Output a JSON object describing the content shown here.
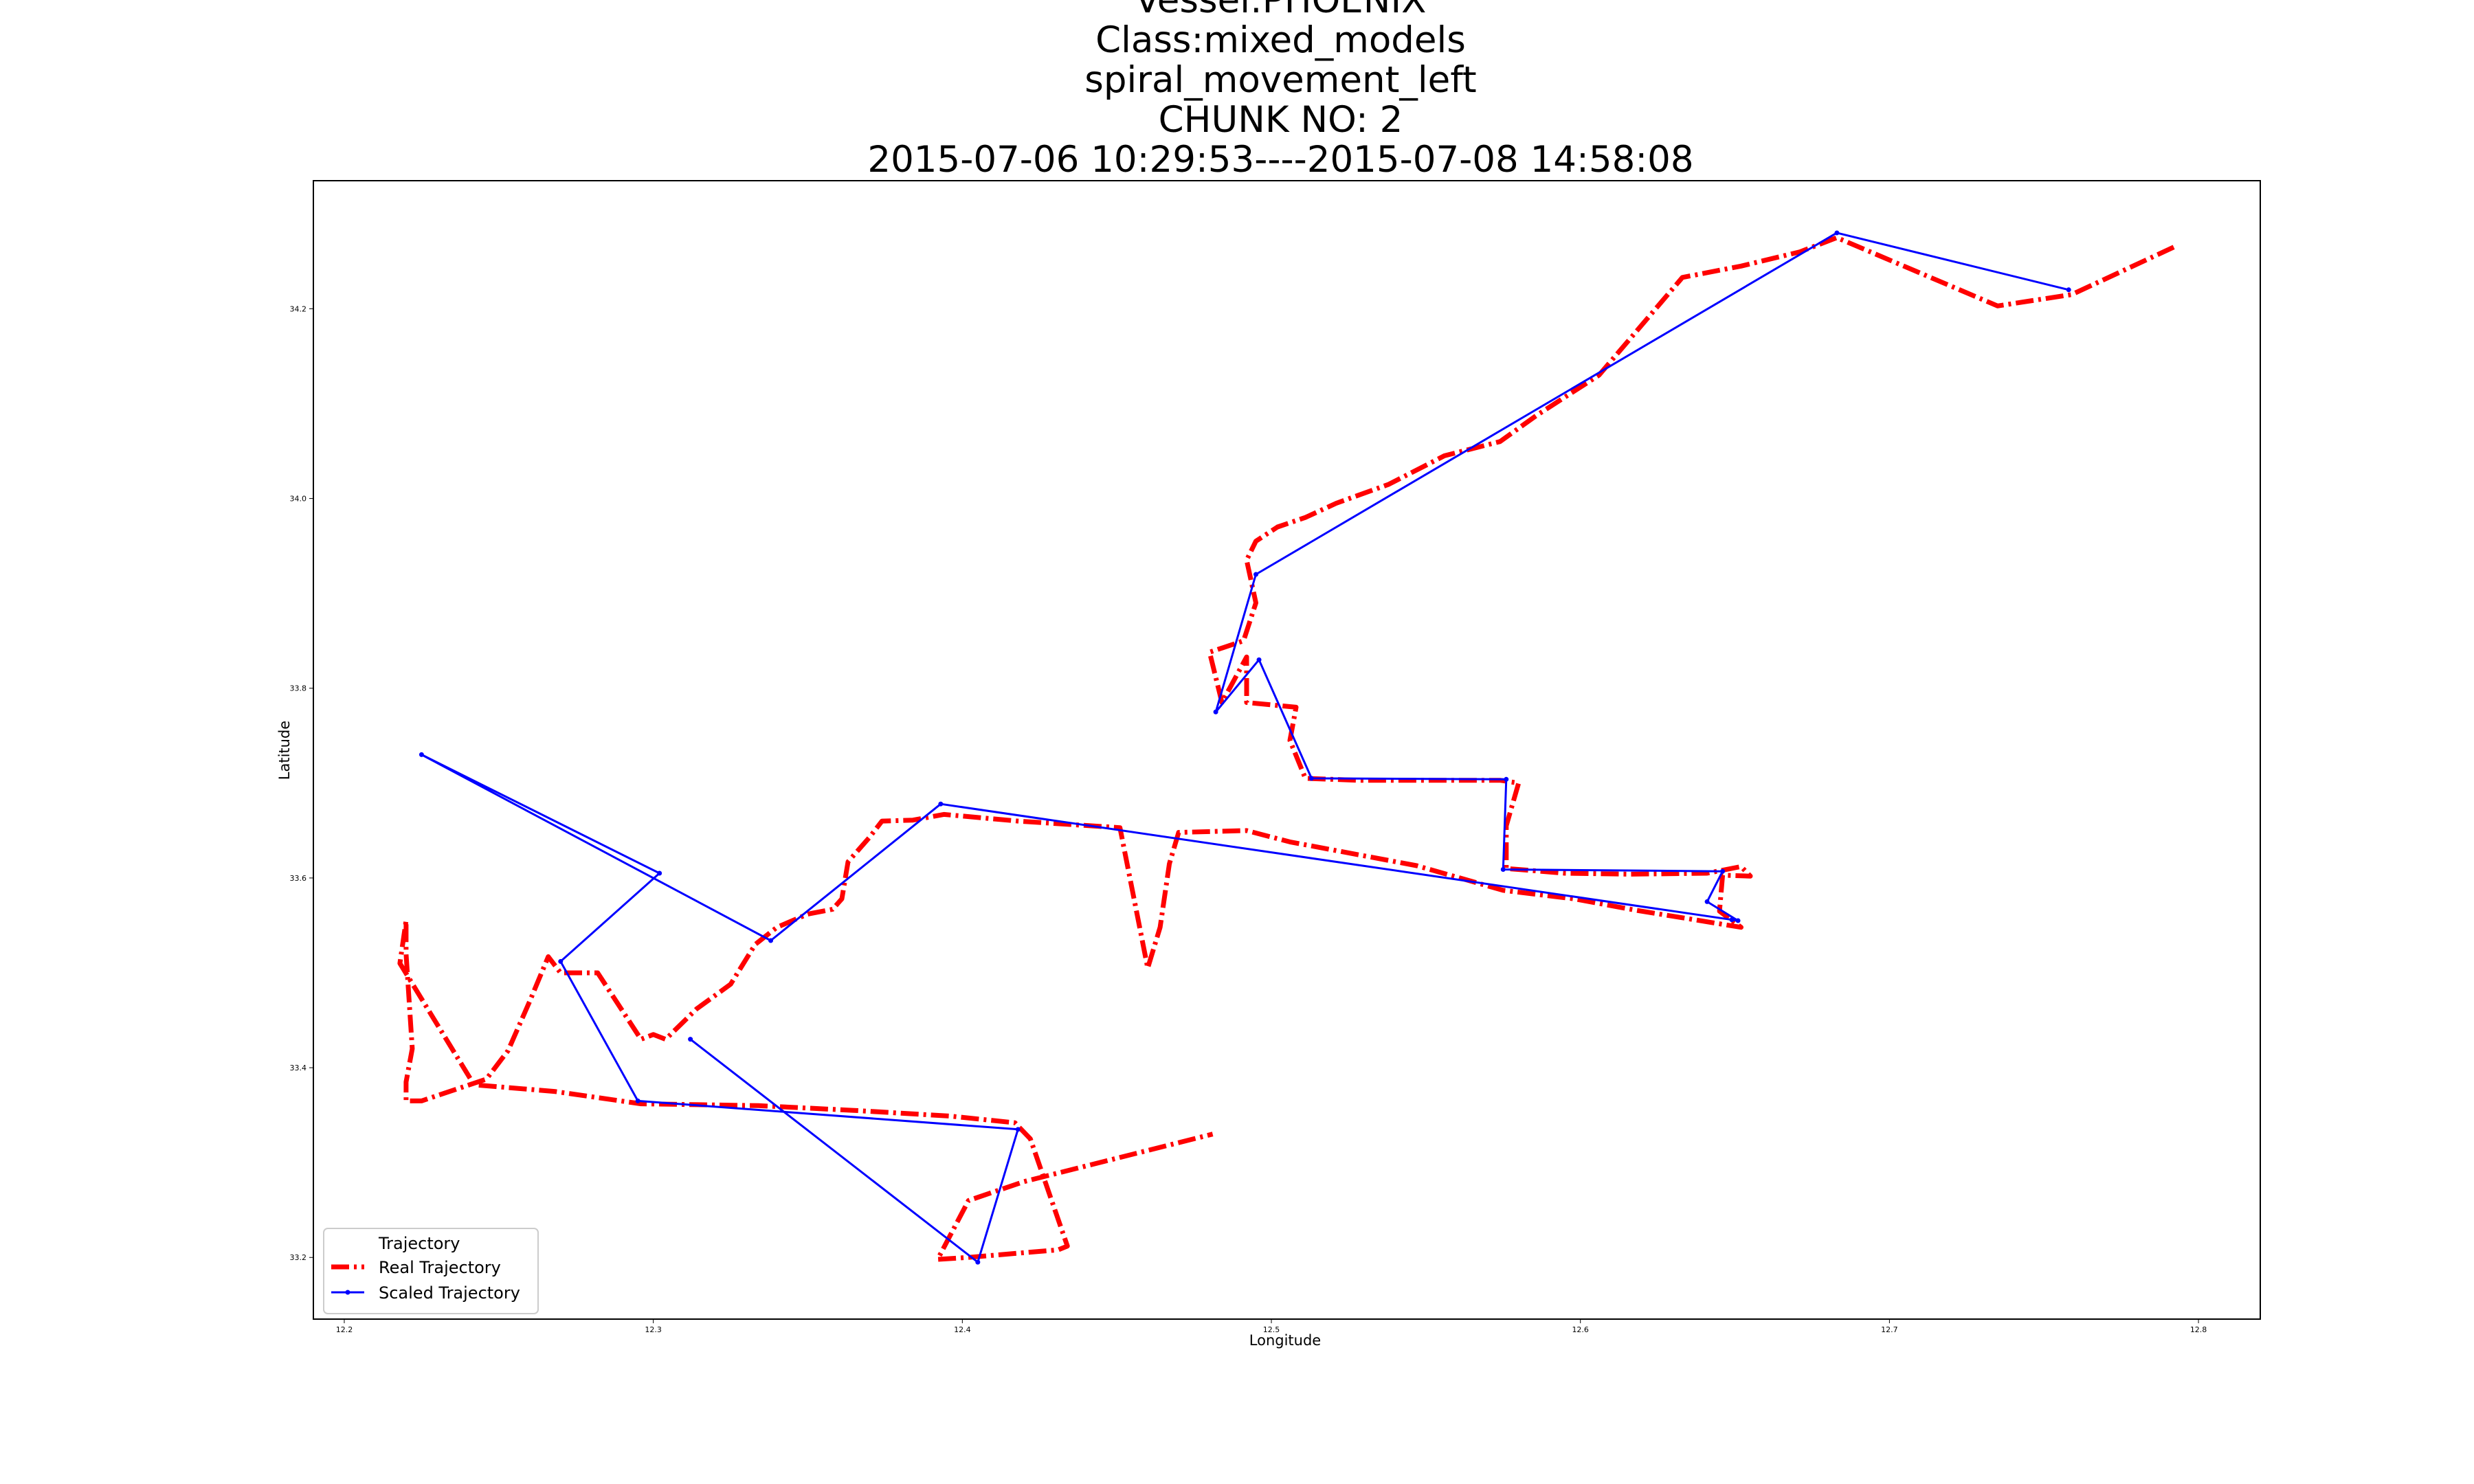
{
  "title_lines": [
    "Vessel:PHOENIX",
    "Class:mixed_models",
    "spiral_movement_left",
    "CHUNK NO: 2",
    "2015-07-06 10:29:53----2015-07-08 14:58:08"
  ],
  "chart_data": {
    "type": "line",
    "xlabel": "Longitude",
    "ylabel": "Latitude",
    "xlim": [
      12.19,
      12.82
    ],
    "ylim": [
      33.135,
      34.335
    ],
    "x_ticks": [
      "12.2",
      "12.3",
      "12.4",
      "12.5",
      "12.6",
      "12.7",
      "12.8"
    ],
    "y_ticks": [
      "33.2",
      "33.4",
      "33.6",
      "33.8",
      "34.0",
      "34.2"
    ],
    "grid": false,
    "legend": {
      "placement": "lower-left",
      "title": "Trajectory",
      "entries": [
        "Real Trajectory",
        "Scaled Trajectory"
      ]
    },
    "series": [
      {
        "name": "Real Trajectory",
        "color": "#ff0000",
        "style": "dashdot",
        "x": [
          12.792,
          12.759,
          12.735,
          12.683,
          12.671,
          12.652,
          12.633,
          12.606,
          12.586,
          12.574,
          12.556,
          12.538,
          12.521,
          12.511,
          12.502,
          12.495,
          12.492,
          12.495,
          12.491,
          12.48,
          12.484,
          12.492,
          12.492,
          12.508,
          12.506,
          12.511,
          12.528,
          12.574,
          12.58,
          12.576,
          12.576,
          12.595,
          12.616,
          12.641,
          12.652,
          12.655,
          12.646,
          12.645,
          12.652,
          12.618,
          12.598,
          12.575,
          12.547,
          12.506,
          12.492,
          12.47,
          12.467,
          12.464,
          12.46,
          12.451,
          12.418,
          12.394,
          12.384,
          12.374,
          12.37,
          12.363,
          12.361,
          12.358,
          12.35,
          12.34,
          12.333,
          12.325,
          12.314,
          12.304,
          12.3,
          12.296,
          12.282,
          12.27,
          12.266,
          12.26,
          12.253,
          12.246,
          12.225,
          12.22,
          12.22,
          12.222,
          12.22,
          12.22,
          12.218,
          12.242,
          12.268,
          12.296,
          12.334,
          12.365,
          12.396,
          12.417,
          12.422,
          12.434,
          12.431,
          12.42,
          12.402,
          12.392,
          12.402,
          12.42,
          12.481
        ],
        "y": [
          34.265,
          34.215,
          34.203,
          34.275,
          34.26,
          34.245,
          34.233,
          34.13,
          34.088,
          34.06,
          34.045,
          34.015,
          33.995,
          33.98,
          33.97,
          33.955,
          33.935,
          33.89,
          33.85,
          33.838,
          33.785,
          33.833,
          33.785,
          33.78,
          33.745,
          33.705,
          33.703,
          33.703,
          33.7,
          33.655,
          33.61,
          33.605,
          33.604,
          33.605,
          33.612,
          33.602,
          33.603,
          33.565,
          33.548,
          33.566,
          33.578,
          33.587,
          33.613,
          33.638,
          33.65,
          33.648,
          33.615,
          33.548,
          33.505,
          33.653,
          33.66,
          33.667,
          33.661,
          33.66,
          33.643,
          33.617,
          33.578,
          33.567,
          33.562,
          33.548,
          33.53,
          33.488,
          33.462,
          33.43,
          33.435,
          33.43,
          33.5,
          33.5,
          33.517,
          33.47,
          33.418,
          33.388,
          33.365,
          33.365,
          33.385,
          33.42,
          33.52,
          33.555,
          33.51,
          33.382,
          33.375,
          33.362,
          33.36,
          33.355,
          33.349,
          33.342,
          33.325,
          33.212,
          33.208,
          33.205,
          33.2,
          33.198,
          33.26,
          33.28,
          33.33
        ]
      },
      {
        "name": "Scaled Trajectory",
        "color": "#0000ff",
        "style": "solid",
        "x": [
          12.758,
          12.683,
          12.495,
          12.482,
          12.496,
          12.513,
          12.576,
          12.575,
          12.646,
          12.641,
          12.651,
          12.649,
          12.393,
          12.338,
          12.225,
          12.302,
          12.27,
          12.295,
          12.418,
          12.405,
          12.312
        ],
        "y": [
          34.22,
          34.28,
          33.92,
          33.775,
          33.83,
          33.705,
          33.704,
          33.609,
          33.607,
          33.575,
          33.555,
          33.556,
          33.678,
          33.534,
          33.73,
          33.605,
          33.512,
          33.365,
          33.335,
          33.195,
          33.43
        ]
      }
    ]
  }
}
